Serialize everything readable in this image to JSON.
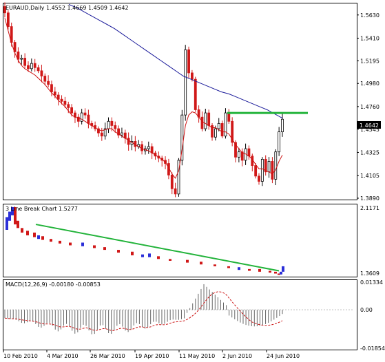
{
  "colors": {
    "background": "#ffffff",
    "frame": "#000000",
    "bull": "#2b2fd8",
    "bear": "#d01818",
    "ma_fast": "#cc1010",
    "ma_slow": "#1a1a9a",
    "trendline": "#22b33a",
    "macd_hist": "#666666",
    "macd_signal": "#cc1010",
    "price_tag_bg": "#000000",
    "price_tag_text": "#ffffff"
  },
  "main": {
    "header": "EURAUD,Daily  1.4552 1.4669 1.4509 1.4642",
    "last_price": "1.4642",
    "price_axis": [
      "1.5630",
      "1.5410",
      "1.5195",
      "1.4980",
      "1.4760",
      "1.4545",
      "1.4325",
      "1.4105",
      "1.3890"
    ]
  },
  "three_line_break": {
    "header": "3 Line Break Chart 1.5277",
    "axis_labels": [
      "2.1171",
      "1.3609"
    ]
  },
  "macd": {
    "header": "MACD(12,26,9) -0.00180 -0.00853",
    "axis_labels": [
      "0.01334",
      "0.00",
      "-0.01854"
    ]
  },
  "time_axis": [
    "10 Feb 2010",
    "4 Mar 2010",
    "26 Mar 2010",
    "19 Apr 2010",
    "11 May 2010",
    "2 Jun 2010",
    "24 Jun 2010"
  ],
  "chart_data": [
    {
      "type": "candlestick",
      "symbol": "EURAUD",
      "timeframe": "Daily",
      "ylim": [
        1.389,
        1.572
      ],
      "x": [
        "10 Feb 2010",
        "4 Mar 2010",
        "26 Mar 2010",
        "19 Apr 2010",
        "11 May 2010",
        "2 Jun 2010",
        "24 Jun 2010"
      ],
      "close_path": [
        1.565,
        1.552,
        1.537,
        1.528,
        1.521,
        1.522,
        1.515,
        1.512,
        1.517,
        1.513,
        1.51,
        1.505,
        1.5,
        1.497,
        1.49,
        1.487,
        1.483,
        1.481,
        1.478,
        1.475,
        1.47,
        1.466,
        1.462,
        1.47,
        1.468,
        1.46,
        1.458,
        1.455,
        1.451,
        1.448,
        1.455,
        1.462,
        1.458,
        1.455,
        1.449,
        1.451,
        1.446,
        1.44,
        1.443,
        1.438,
        1.44,
        1.434,
        1.436,
        1.438,
        1.432,
        1.429,
        1.427,
        1.425,
        1.422,
        1.411,
        1.398,
        1.393,
        1.425,
        1.468,
        1.53,
        1.508,
        1.502,
        1.473,
        1.466,
        1.455,
        1.47,
        1.458,
        1.447,
        1.455,
        1.46,
        1.448,
        1.47,
        1.462,
        1.442,
        1.428,
        1.433,
        1.425,
        1.436,
        1.429,
        1.42,
        1.41,
        1.405,
        1.426,
        1.414,
        1.424,
        1.407,
        1.433,
        1.452,
        1.464
      ],
      "overlays": [
        {
          "name": "ma_fast",
          "values": [
            1.56,
            1.548,
            1.536,
            1.527,
            1.52,
            1.515,
            1.512,
            1.51,
            1.508,
            1.506,
            1.503,
            1.5,
            1.497,
            1.493,
            1.489,
            1.486,
            1.482,
            1.479,
            1.476,
            1.472,
            1.468,
            1.466,
            1.465,
            1.464,
            1.462,
            1.46,
            1.458,
            1.456,
            1.454,
            1.453,
            1.454,
            1.455,
            1.455,
            1.452,
            1.45,
            1.448,
            1.446,
            1.444,
            1.442,
            1.44,
            1.438,
            1.436,
            1.435,
            1.434,
            1.432,
            1.43,
            1.428,
            1.426,
            1.423,
            1.418,
            1.412,
            1.408,
            1.415,
            1.435,
            1.458,
            1.468,
            1.471,
            1.47,
            1.466,
            1.462,
            1.46,
            1.458,
            1.456,
            1.456,
            1.454,
            1.452,
            1.452,
            1.45,
            1.445,
            1.44,
            1.436,
            1.432,
            1.431,
            1.429,
            1.426,
            1.421,
            1.417,
            1.417,
            1.415,
            1.414,
            1.412,
            1.416,
            1.424,
            1.43
          ]
        },
        {
          "name": "ma_slow",
          "values": [
            1.573,
            1.57,
            1.566,
            1.562,
            1.558,
            1.554,
            1.55,
            1.545,
            1.54,
            1.535,
            1.53,
            1.525,
            1.52,
            1.515,
            1.51,
            1.505,
            1.502,
            1.499,
            1.496,
            1.493,
            1.49,
            1.488,
            1.485,
            1.482,
            1.479,
            1.476,
            1.473,
            1.469,
            1.465
          ]
        }
      ],
      "horizontal_line": 1.47
    },
    {
      "type": "three_line_break",
      "title": "3 Line Break Chart 1.5277",
      "ylim": [
        1.3609,
        2.1171
      ],
      "trendline": [
        1.92,
        1.41
      ]
    },
    {
      "type": "macd",
      "title": "MACD(12,26,9) -0.00180 -0.00853",
      "ylim": [
        -0.01854,
        0.01334
      ],
      "macd": -0.0018,
      "signal": -0.00853
    }
  ]
}
